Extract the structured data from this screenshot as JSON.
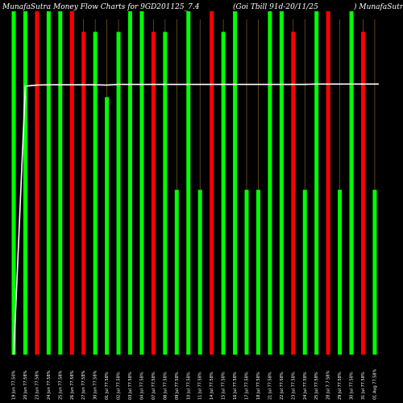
{
  "chart_data": {
    "type": "bar",
    "title_left": "MunafaSutra Money Flow  Charts for 9GD201125_7.4",
    "title_mid": "(Goi  Tbill 91d-20/11/25",
    "title_right": ") MunafaSutra.com",
    "xlabel": "",
    "ylabel": "",
    "grid": false,
    "legend": "none",
    "colors": {
      "up": "#00ff00",
      "down": "#ff0000",
      "line": "#ffffff",
      "wick": "#9a6a2a",
      "background": "#000000"
    },
    "ylim": [
      0,
      100
    ],
    "categories": [
      "19 Jun 77.50%",
      "20 Jun 77.58%",
      "23 Jun 77.58%",
      "24 Jun 77.58%",
      "25 Jun 77.58%",
      "26 Jun 77.58%",
      "27 Jun 77.58%",
      "30 Jun 77.58%",
      "01 Jul 77.58%",
      "02 Jul 77.58%",
      "03 Jul 77.58%",
      "04 Jul 77.58%",
      "07 Jul 77.58%",
      "08 Jul 77.58%",
      "09 Jul 77.58%",
      "10 Jul 77.58%",
      "11 Jul 77.58%",
      "14 Jul 77.58%",
      "15 Jul 77.58%",
      "16 Jul 77.58%",
      "17 Jul 77.58%",
      "18 Jul 77.58%",
      "21 Jul 77.58%",
      "22 Jul 77.58%",
      "23 Jul 77.58%",
      "24 Jul 77.58%",
      "25 Jul 77.58%",
      "28 Jul 7.7.58%",
      "29 Jul 77.58%",
      "30 Jul 77.58%",
      "31 Jul 77.58%",
      "01 Aug 77.58%"
    ],
    "series": [
      {
        "values": [
          100,
          100,
          100,
          100,
          100,
          100,
          94,
          94,
          75,
          94,
          100,
          100,
          94,
          94,
          48,
          100,
          48,
          100,
          94,
          100,
          48,
          48,
          100,
          100,
          94,
          48,
          100,
          100,
          48,
          100,
          94,
          48
        ],
        "direction": [
          "up",
          "up",
          "down",
          "up",
          "up",
          "down",
          "down",
          "up",
          "up",
          "up",
          "up",
          "up",
          "down",
          "up",
          "up",
          "up",
          "up",
          "down",
          "up",
          "up",
          "up",
          "up",
          "up",
          "up",
          "down",
          "up",
          "up",
          "down",
          "up",
          "up",
          "down",
          "up"
        ]
      },
      {
        "values": [
          0,
          78.2,
          78.5,
          78.6,
          78.6,
          78.6,
          78.6,
          78.6,
          78.5,
          78.7,
          78.7,
          78.7,
          78.7,
          78.7,
          78.7,
          78.7,
          78.7,
          78.7,
          78.7,
          78.7,
          78.7,
          78.7,
          78.7,
          78.7,
          78.7,
          78.7,
          78.8,
          78.8,
          78.8,
          78.8,
          78.8,
          78.8
        ]
      }
    ]
  }
}
